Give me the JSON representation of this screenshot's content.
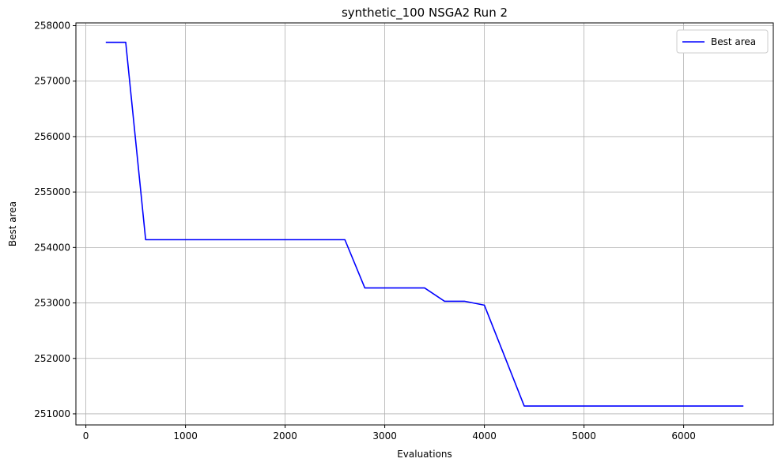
{
  "chart_data": {
    "type": "line",
    "title": "synthetic_100 NSGA2 Run 2",
    "xlabel": "Evaluations",
    "ylabel": "Best area",
    "xlim": [
      -100,
      6900
    ],
    "ylim": [
      250800,
      258050
    ],
    "xticks": [
      0,
      1000,
      2000,
      3000,
      4000,
      5000,
      6000
    ],
    "yticks": [
      251000,
      252000,
      253000,
      254000,
      255000,
      256000,
      257000,
      258000
    ],
    "grid": true,
    "legend_position": "top-right",
    "series": [
      {
        "name": "Best area",
        "color": "#0000ff",
        "x": [
          200,
          400,
          600,
          800,
          1000,
          1200,
          1400,
          1600,
          1800,
          2000,
          2200,
          2400,
          2600,
          2800,
          3000,
          3200,
          3400,
          3600,
          3800,
          4000,
          4200,
          4400,
          4600,
          4800,
          5000,
          5200,
          5400,
          5600,
          5800,
          6000,
          6200,
          6400,
          6600
        ],
        "y": [
          257700,
          257700,
          254140,
          254140,
          254140,
          254140,
          254140,
          254140,
          254140,
          254140,
          254140,
          254140,
          254140,
          253270,
          253270,
          253270,
          253270,
          253030,
          253030,
          252960,
          252050,
          251140,
          251140,
          251140,
          251140,
          251140,
          251140,
          251140,
          251140,
          251140,
          251140,
          251140,
          251140
        ]
      }
    ]
  }
}
